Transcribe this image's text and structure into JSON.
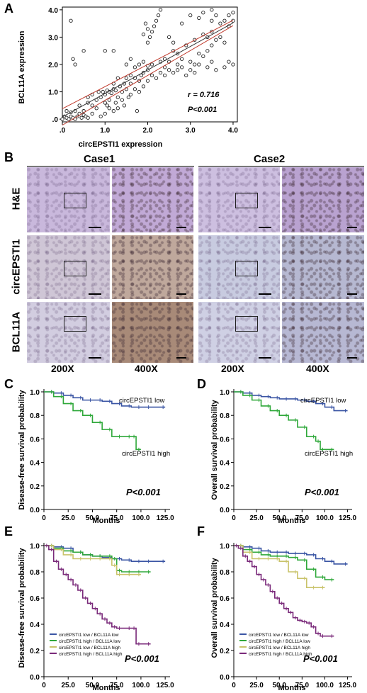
{
  "panels": {
    "A": "A",
    "B": "B",
    "C": "C",
    "D": "D",
    "E": "E",
    "F": "F"
  },
  "scatter": {
    "xlabel": "circEPSTI1 expression",
    "ylabel": "BCL11A expression",
    "xticks": [
      ".0",
      "1.0",
      "2.0",
      "3.0",
      "4.0"
    ],
    "yticks": [
      ".0",
      "1.0",
      "2.0",
      "3.0",
      "4.0"
    ],
    "r_text": "r = 0.716",
    "p_text": "P<0.001",
    "xlim": [
      0,
      4.1
    ],
    "ylim": [
      -0.1,
      4.1
    ]
  },
  "ihc": {
    "cases": [
      "Case1",
      "Case2"
    ],
    "rows": [
      "H&E",
      "circEPSTI1",
      "BCL11A"
    ],
    "mags": [
      "200X",
      "400X",
      "200X",
      "400X"
    ]
  },
  "km": {
    "xticks": [
      "0",
      "25.0",
      "50.0",
      "75.0",
      "100.0",
      "125.0"
    ],
    "yticks": [
      "0.0",
      "0.2",
      "0.4",
      "0.6",
      "0.8",
      "1.0"
    ],
    "xlabel": "Months",
    "C": {
      "ylabel": "Disease-free survival probability",
      "p_text": "P<0.001",
      "label_low": "circEPSTI1 low",
      "label_high": "circEPSTI1 high"
    },
    "D": {
      "ylabel": "Overall survival probability",
      "p_text": "P<0.001",
      "label_low": "circEPSTI1 low",
      "label_high": "circEPSTI1 high"
    },
    "E": {
      "ylabel": "Disease-free survival probability",
      "p_text": "P<0.001",
      "legend": [
        "circEPSTI1 low / BCL11A low",
        "circEPSTI1 high / BCL11A low",
        "circEPSTI1 low / BCL11A high",
        "circEPSTI1 high / BCL11A high"
      ]
    },
    "F": {
      "ylabel": "Overall survival probability",
      "p_text": "P<0.001",
      "legend": [
        "circEPSTI1 low / BCL11A low",
        "circEPSTI1 high / BCL11A low",
        "circEPSTI1 low / BCL11A high",
        "circEPSTI1 high / BCL11A high"
      ]
    },
    "colors": [
      "#3a55a4",
      "#2fa83a",
      "#c9c36a",
      "#7a2a7a"
    ]
  },
  "chart_data": [
    {
      "type": "scatter",
      "xlabel": "circEPSTI1 expression",
      "ylabel": "BCL11A expression",
      "xlim": [
        0,
        4.1
      ],
      "ylim": [
        -0.1,
        4.1
      ],
      "annotations": [
        "r = 0.716",
        "P<0.001"
      ],
      "points": [
        [
          0.0,
          0.0
        ],
        [
          0.05,
          0.1
        ],
        [
          0.1,
          0.05
        ],
        [
          0.15,
          0.0
        ],
        [
          0.2,
          0.1
        ],
        [
          0.25,
          0.05
        ],
        [
          0.3,
          0.0
        ],
        [
          0.35,
          0.1
        ],
        [
          0.4,
          0.2
        ],
        [
          0.45,
          0.05
        ],
        [
          0.5,
          0.15
        ],
        [
          0.55,
          0.1
        ],
        [
          0.6,
          0.05
        ],
        [
          0.1,
          0.3
        ],
        [
          0.2,
          0.25
        ],
        [
          0.3,
          0.3
        ],
        [
          0.4,
          0.5
        ],
        [
          0.5,
          0.3
        ],
        [
          0.6,
          0.6
        ],
        [
          0.7,
          0.5
        ],
        [
          0.8,
          0.7
        ],
        [
          0.9,
          0.8
        ],
        [
          0.95,
          1.0
        ],
        [
          1.0,
          0.9
        ],
        [
          1.05,
          1.05
        ],
        [
          1.1,
          1.0
        ],
        [
          1.15,
          0.95
        ],
        [
          1.2,
          1.1
        ],
        [
          1.25,
          1.05
        ],
        [
          1.0,
          0.6
        ],
        [
          1.05,
          0.5
        ],
        [
          1.1,
          0.4
        ],
        [
          1.2,
          0.3
        ],
        [
          1.25,
          0.6
        ],
        [
          1.3,
          0.8
        ],
        [
          1.4,
          1.0
        ],
        [
          1.5,
          1.1
        ],
        [
          1.55,
          0.8
        ],
        [
          1.6,
          1.3
        ],
        [
          1.7,
          1.5
        ],
        [
          1.8,
          1.4
        ],
        [
          1.85,
          1.6
        ],
        [
          1.9,
          1.7
        ],
        [
          2.0,
          1.8
        ],
        [
          2.1,
          1.6
        ],
        [
          2.2,
          1.5
        ],
        [
          2.3,
          1.7
        ],
        [
          2.4,
          1.6
        ],
        [
          2.5,
          1.8
        ],
        [
          2.6,
          1.7
        ],
        [
          2.7,
          1.8
        ],
        [
          2.8,
          1.9
        ],
        [
          2.9,
          1.6
        ],
        [
          3.0,
          1.8
        ],
        [
          3.1,
          1.7
        ],
        [
          3.2,
          2.0
        ],
        [
          3.3,
          2.3
        ],
        [
          3.4,
          2.5
        ],
        [
          3.5,
          2.7
        ],
        [
          3.6,
          2.9
        ],
        [
          3.7,
          3.5
        ],
        [
          3.8,
          3.6
        ],
        [
          3.9,
          3.4
        ],
        [
          4.0,
          3.6
        ],
        [
          4.0,
          3.9
        ],
        [
          3.9,
          3.8
        ],
        [
          3.6,
          3.8
        ],
        [
          3.5,
          4.0
        ],
        [
          3.3,
          3.9
        ],
        [
          3.2,
          3.7
        ],
        [
          3.0,
          3.8
        ],
        [
          2.8,
          3.5
        ],
        [
          2.6,
          2.8
        ],
        [
          2.5,
          3.0
        ],
        [
          2.0,
          2.8
        ],
        [
          2.05,
          3.0
        ],
        [
          2.1,
          3.2
        ],
        [
          2.15,
          3.4
        ],
        [
          2.2,
          3.6
        ],
        [
          2.25,
          3.8
        ],
        [
          2.3,
          4.0
        ],
        [
          1.9,
          3.1
        ],
        [
          1.95,
          3.5
        ],
        [
          2.0,
          3.3
        ],
        [
          0.3,
          2.0
        ],
        [
          0.2,
          3.6
        ],
        [
          0.25,
          2.2
        ],
        [
          0.5,
          2.5
        ],
        [
          1.2,
          2.5
        ],
        [
          1.0,
          2.5
        ],
        [
          1.5,
          2.0
        ],
        [
          1.6,
          2.2
        ],
        [
          1.7,
          1.9
        ],
        [
          1.8,
          2.0
        ],
        [
          1.9,
          2.1
        ],
        [
          2.0,
          1.95
        ],
        [
          2.1,
          2.0
        ],
        [
          2.3,
          2.1
        ],
        [
          2.4,
          2.2
        ],
        [
          2.5,
          2.1
        ],
        [
          2.7,
          2.0
        ],
        [
          3.0,
          2.1
        ],
        [
          3.1,
          2.0
        ],
        [
          3.4,
          1.9
        ],
        [
          3.5,
          2.1
        ],
        [
          3.6,
          1.8
        ],
        [
          3.9,
          2.1
        ],
        [
          4.0,
          2.0
        ],
        [
          3.8,
          1.9
        ],
        [
          1.4,
          0.7
        ],
        [
          1.45,
          0.5
        ],
        [
          1.6,
          0.9
        ],
        [
          1.7,
          1.1
        ],
        [
          1.75,
          0.3
        ],
        [
          1.8,
          1.0
        ],
        [
          1.9,
          1.2
        ],
        [
          2.0,
          1.4
        ],
        [
          0.7,
          0.2
        ],
        [
          0.8,
          0.4
        ],
        [
          0.9,
          0.1
        ],
        [
          1.0,
          0.2
        ],
        [
          1.1,
          0.7
        ],
        [
          1.3,
          0.4
        ],
        [
          1.35,
          1.2
        ],
        [
          1.5,
          1.5
        ],
        [
          1.6,
          1.6
        ],
        [
          2.6,
          2.5
        ],
        [
          2.7,
          2.4
        ],
        [
          2.9,
          2.7
        ],
        [
          3.1,
          2.9
        ],
        [
          3.3,
          3.1
        ],
        [
          3.4,
          3.0
        ],
        [
          3.5,
          3.2
        ],
        [
          3.7,
          3.0
        ],
        [
          3.8,
          2.8
        ],
        [
          1.2,
          1.3
        ],
        [
          1.3,
          1.5
        ],
        [
          1.45,
          1.3
        ],
        [
          2.4,
          1.9
        ],
        [
          2.8,
          2.2
        ],
        [
          3.2,
          2.4
        ],
        [
          3.5,
          3.6
        ],
        [
          0.6,
          0.8
        ],
        [
          0.7,
          0.9
        ],
        [
          0.85,
          1.0
        ]
      ]
    },
    {
      "type": "line",
      "xlabel": "Months",
      "ylabel": "Disease-free survival probability",
      "xlim": [
        0,
        130
      ],
      "ylim": [
        0,
        1.0
      ],
      "series": [
        {
          "name": "circEPSTI1 low",
          "x": [
            0,
            10,
            20,
            30,
            40,
            50,
            60,
            70,
            80,
            90,
            100,
            110,
            125
          ],
          "values": [
            1.0,
            0.99,
            0.97,
            0.95,
            0.93,
            0.93,
            0.92,
            0.9,
            0.88,
            0.87,
            0.87,
            0.87,
            0.87
          ]
        },
        {
          "name": "circEPSTI1 high",
          "x": [
            0,
            10,
            20,
            30,
            40,
            50,
            60,
            70,
            80,
            90,
            95,
            100
          ],
          "values": [
            1.0,
            0.96,
            0.9,
            0.84,
            0.8,
            0.74,
            0.68,
            0.62,
            0.62,
            0.62,
            0.51,
            0.51
          ]
        }
      ]
    },
    {
      "type": "line",
      "xlabel": "Months",
      "ylabel": "Overall survival probability",
      "xlim": [
        0,
        130
      ],
      "ylim": [
        0,
        1.0
      ],
      "series": [
        {
          "name": "circEPSTI1 low",
          "x": [
            0,
            10,
            20,
            30,
            40,
            50,
            60,
            70,
            80,
            90,
            100,
            110,
            125
          ],
          "values": [
            1.0,
            0.99,
            0.97,
            0.96,
            0.95,
            0.94,
            0.94,
            0.93,
            0.92,
            0.9,
            0.87,
            0.84,
            0.84
          ]
        },
        {
          "name": "circEPSTI1 high",
          "x": [
            0,
            10,
            20,
            30,
            40,
            50,
            60,
            70,
            80,
            90,
            95,
            100,
            110
          ],
          "values": [
            1.0,
            0.97,
            0.93,
            0.88,
            0.84,
            0.8,
            0.76,
            0.7,
            0.62,
            0.58,
            0.51,
            0.51,
            0.51
          ]
        }
      ]
    },
    {
      "type": "line",
      "xlabel": "Months",
      "ylabel": "Disease-free survival probability",
      "xlim": [
        0,
        130
      ],
      "ylim": [
        0,
        1.0
      ],
      "series": [
        {
          "name": "circEPSTI1 low / BCL11A low",
          "x": [
            0,
            10,
            20,
            30,
            40,
            50,
            60,
            70,
            80,
            90,
            100,
            110,
            125
          ],
          "values": [
            1.0,
            0.99,
            0.98,
            0.95,
            0.93,
            0.92,
            0.91,
            0.9,
            0.89,
            0.88,
            0.88,
            0.88,
            0.88
          ]
        },
        {
          "name": "circEPSTI1 high / BCL11A low",
          "x": [
            0,
            10,
            20,
            30,
            40,
            50,
            60,
            70,
            75,
            80,
            90,
            100,
            110
          ],
          "values": [
            1.0,
            0.98,
            0.96,
            0.95,
            0.93,
            0.92,
            0.92,
            0.9,
            0.81,
            0.8,
            0.8,
            0.8,
            0.8
          ]
        },
        {
          "name": "circEPSTI1 low / BCL11A high",
          "x": [
            0,
            10,
            20,
            30,
            40,
            50,
            60,
            70,
            75,
            80,
            90,
            100
          ],
          "values": [
            1.0,
            0.97,
            0.93,
            0.9,
            0.9,
            0.9,
            0.9,
            0.85,
            0.78,
            0.78,
            0.78,
            0.78
          ]
        },
        {
          "name": "circEPSTI1 high / BCL11A high",
          "x": [
            0,
            5,
            10,
            15,
            20,
            25,
            30,
            35,
            40,
            45,
            50,
            55,
            60,
            65,
            70,
            75,
            80,
            90,
            95,
            100,
            110
          ],
          "values": [
            1.0,
            0.97,
            0.88,
            0.82,
            0.78,
            0.74,
            0.7,
            0.66,
            0.6,
            0.56,
            0.52,
            0.48,
            0.44,
            0.41,
            0.38,
            0.37,
            0.37,
            0.37,
            0.25,
            0.25,
            0.25
          ]
        }
      ]
    },
    {
      "type": "line",
      "xlabel": "Months",
      "ylabel": "Overall survival probability",
      "xlim": [
        0,
        130
      ],
      "ylim": [
        0,
        1.0
      ],
      "series": [
        {
          "name": "circEPSTI1 low / BCL11A low",
          "x": [
            0,
            10,
            20,
            30,
            40,
            50,
            60,
            70,
            80,
            90,
            100,
            110,
            125
          ],
          "values": [
            1.0,
            0.99,
            0.98,
            0.96,
            0.95,
            0.95,
            0.94,
            0.94,
            0.93,
            0.9,
            0.88,
            0.86,
            0.86
          ]
        },
        {
          "name": "circEPSTI1 high / BCL11A low",
          "x": [
            0,
            10,
            20,
            30,
            40,
            50,
            60,
            70,
            80,
            90,
            100,
            110
          ],
          "values": [
            1.0,
            0.97,
            0.95,
            0.93,
            0.92,
            0.92,
            0.91,
            0.89,
            0.82,
            0.76,
            0.74,
            0.74
          ]
        },
        {
          "name": "circEPSTI1 low / BCL11A high",
          "x": [
            0,
            10,
            20,
            30,
            40,
            50,
            60,
            70,
            80,
            90,
            100
          ],
          "values": [
            1.0,
            0.95,
            0.9,
            0.9,
            0.9,
            0.88,
            0.8,
            0.75,
            0.68,
            0.68,
            0.68
          ]
        },
        {
          "name": "circEPSTI1 high / BCL11A high",
          "x": [
            0,
            5,
            10,
            15,
            20,
            25,
            30,
            35,
            40,
            45,
            50,
            55,
            60,
            65,
            70,
            75,
            80,
            85,
            90,
            95,
            100,
            110
          ],
          "values": [
            1.0,
            0.98,
            0.92,
            0.88,
            0.84,
            0.78,
            0.74,
            0.7,
            0.65,
            0.6,
            0.56,
            0.52,
            0.49,
            0.45,
            0.43,
            0.42,
            0.41,
            0.38,
            0.33,
            0.31,
            0.31,
            0.31
          ]
        }
      ]
    }
  ]
}
